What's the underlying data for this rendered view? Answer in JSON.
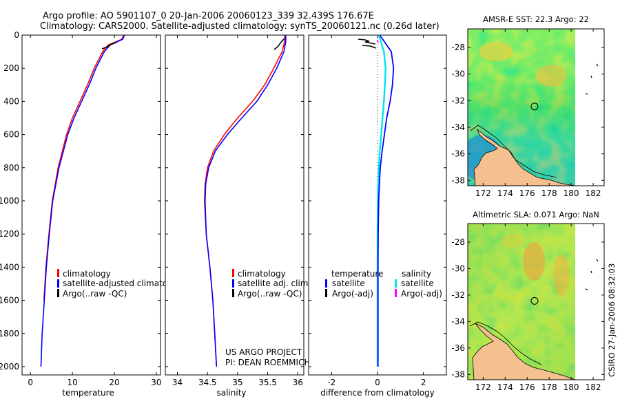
{
  "header": {
    "line1": "Argo profile: AO 5901107_0 20-Jan-2006 20060123_339 32.439S 176.67E",
    "line2": "Climatology: CARS2000. Satellite-adjusted climatology: synTS_20060121.nc (0.26d later)"
  },
  "credit": {
    "line1": "US ARGO PROJECT",
    "line2": "PI: DEAN ROEMMICH"
  },
  "side_stamp": "CSIRO 27-Jan-2006 08:32:03",
  "colors": {
    "climatology": "#ff0000",
    "satellite": "#0000ff",
    "argo": "#000000",
    "sal_satellite": "#00e5ee",
    "sal_argo": "#ff00ff"
  },
  "chart_data": [
    {
      "type": "line",
      "title": "",
      "xlabel": "temperature",
      "ylabel": "",
      "xlim": [
        -2,
        31
      ],
      "ylim": [
        2050,
        0
      ],
      "xticks": [
        "0",
        "10",
        "20",
        "30"
      ],
      "yticks": [
        "0",
        "200",
        "400",
        "600",
        "800",
        "1000",
        "1200",
        "1400",
        "1600",
        "1800",
        "2000"
      ],
      "legend": [
        "climatology",
        "satellite-adjusted climatology",
        "Argo(..raw -QC)"
      ],
      "series": [
        {
          "name": "climatology",
          "color": "#ff0000",
          "depth": [
            0,
            25,
            60,
            100,
            200,
            300,
            400,
            500,
            600,
            800,
            1000,
            1200,
            1400,
            1600
          ],
          "values": [
            22.2,
            21.8,
            18.5,
            17.2,
            15.2,
            13.6,
            11.8,
            10.0,
            8.6,
            6.6,
            5.2,
            4.4,
            3.7,
            3.2
          ]
        },
        {
          "name": "satellite-adjusted climatology",
          "color": "#0000ff",
          "depth": [
            0,
            25,
            60,
            100,
            200,
            300,
            400,
            500,
            600,
            800,
            1000,
            1200,
            1400,
            1600,
            1800,
            2000
          ],
          "values": [
            22.4,
            22.0,
            19.0,
            17.6,
            15.6,
            14.0,
            12.2,
            10.4,
            8.9,
            6.8,
            5.3,
            4.5,
            3.8,
            3.3,
            2.8,
            2.5
          ]
        }
      ]
    },
    {
      "type": "line",
      "title": "",
      "xlabel": "salinity",
      "ylabel": "",
      "xlim": [
        33.8,
        36.1
      ],
      "ylim": [
        2050,
        0
      ],
      "xticks": [
        "34",
        "34.5",
        "35",
        "35.5",
        "36"
      ],
      "legend": [
        "climatology",
        "satellite adj. clim.",
        "Argo(..raw -QC)"
      ],
      "series": [
        {
          "name": "climatology",
          "color": "#ff0000",
          "depth": [
            0,
            40,
            100,
            200,
            300,
            400,
            500,
            600,
            700,
            800,
            900,
            1000,
            1200,
            1400,
            1600,
            1800,
            2000
          ],
          "values": [
            35.78,
            35.78,
            35.74,
            35.6,
            35.45,
            35.25,
            35.0,
            34.78,
            34.6,
            34.5,
            34.46,
            34.45,
            34.48,
            34.54,
            34.59,
            34.62,
            34.65
          ]
        },
        {
          "name": "satellite adj. clim.",
          "color": "#0000ff",
          "depth": [
            0,
            40,
            100,
            200,
            300,
            400,
            500,
            600,
            700,
            800,
            900,
            1000,
            1200,
            1400,
            1600,
            1800,
            2000
          ],
          "values": [
            35.8,
            35.8,
            35.77,
            35.65,
            35.5,
            35.32,
            35.07,
            34.83,
            34.63,
            34.52,
            34.47,
            34.46,
            34.48,
            34.54,
            34.59,
            34.62,
            34.65
          ]
        }
      ]
    },
    {
      "type": "line",
      "title": "",
      "xlabel": "difference from climatology",
      "ylabel": "",
      "xlim": [
        -3,
        3
      ],
      "ylim": [
        2050,
        0
      ],
      "xticks": [
        "-2",
        "0",
        "2"
      ],
      "legend_groups": [
        {
          "title": "temperature",
          "entries": [
            "satellite",
            "Argo(-adj)"
          ]
        },
        {
          "title": "salinity",
          "entries": [
            "satellite",
            "Argo(-adj)"
          ]
        }
      ],
      "series": [
        {
          "name": "temperature satellite",
          "color": "#0000ff",
          "depth": [
            0,
            40,
            100,
            200,
            300,
            400,
            500,
            600,
            700,
            800,
            900,
            1000,
            1200,
            1400,
            1600,
            1800,
            2000
          ],
          "values": [
            0.1,
            0.3,
            0.6,
            0.7,
            0.65,
            0.55,
            0.4,
            0.3,
            0.2,
            0.12,
            0.08,
            0.05,
            0.03,
            0.02,
            0.02,
            0.02,
            0.02
          ]
        },
        {
          "name": "salinity satellite",
          "color": "#00e5ee",
          "depth": [
            0,
            40,
            100,
            200,
            300,
            400,
            500,
            600,
            700,
            800,
            900,
            1000,
            1200,
            1400,
            1600,
            1800,
            2000
          ],
          "values": [
            0.05,
            0.15,
            0.28,
            0.35,
            0.32,
            0.28,
            0.22,
            0.16,
            0.1,
            0.06,
            0.03,
            0.01,
            0.0,
            0.0,
            0.0,
            0.0,
            0.0
          ]
        }
      ]
    },
    {
      "type": "heatmap",
      "title": "AMSR-E SST: 22.3 Argo: 22",
      "xticks": [
        "172",
        "174",
        "176",
        "178",
        "180",
        "182"
      ],
      "yticks": [
        "-28",
        "-30",
        "-32",
        "-34",
        "-36",
        "-38"
      ],
      "xlim": [
        170.6,
        183.0
      ],
      "ylim": [
        -38.4,
        -26.6
      ],
      "argo_position": {
        "lon": 176.67,
        "lat": -32.439
      }
    },
    {
      "type": "heatmap",
      "title": "Altimetric SLA: 0.071 Argo: NaN",
      "xticks": [
        "172",
        "174",
        "176",
        "178",
        "180",
        "182"
      ],
      "yticks": [
        "-28",
        "-30",
        "-32",
        "-34",
        "-36",
        "-38"
      ],
      "xlim": [
        170.6,
        183.0
      ],
      "ylim": [
        -38.4,
        -26.6
      ],
      "argo_position": {
        "lon": 176.67,
        "lat": -32.439
      }
    }
  ]
}
